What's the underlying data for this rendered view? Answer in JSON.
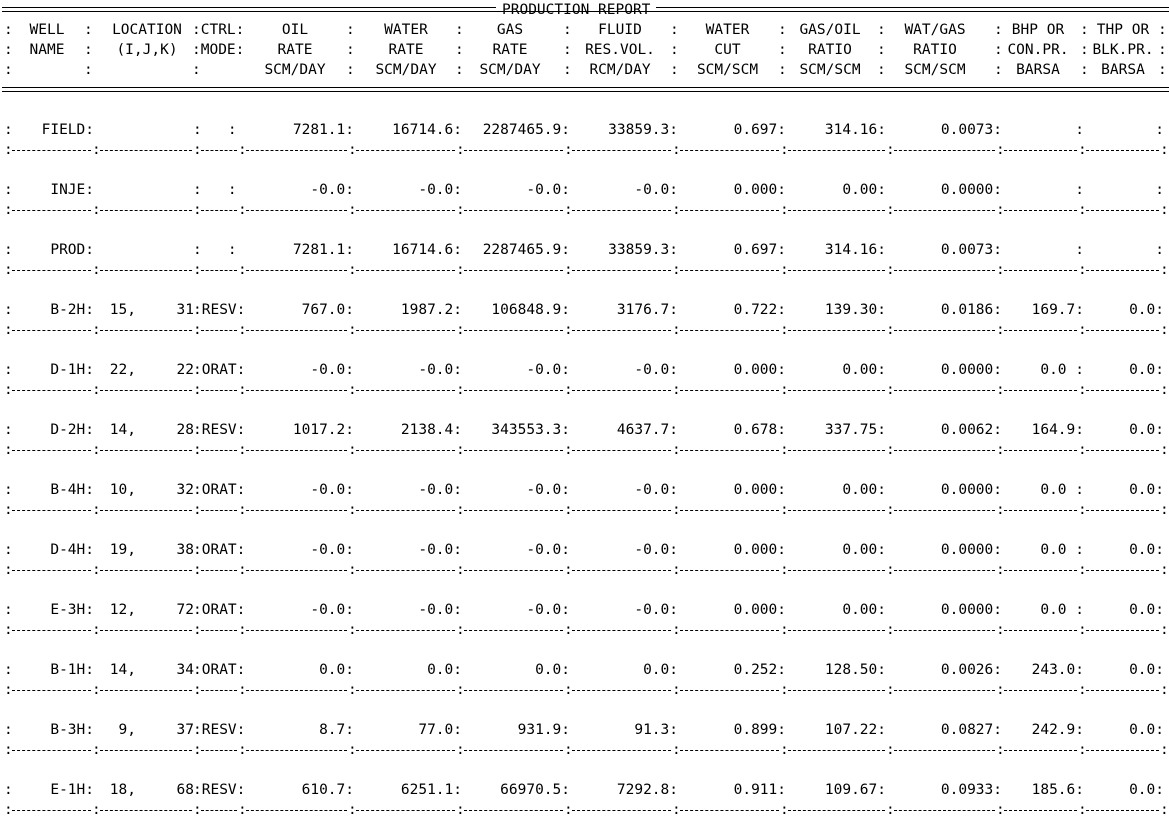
{
  "report": {
    "title": "PRODUCTION REPORT",
    "header_lines": [
      {
        "cells": [
          ":",
          "WELL",
          ":",
          "LOCATION",
          ":CTRL:",
          "OIL",
          ":",
          "WATER",
          ":",
          "GAS",
          ":",
          "FLUID",
          ":",
          "WATER",
          ":",
          "GAS/OIL",
          ":",
          "WAT/GAS",
          ":",
          "BHP OR",
          ":",
          "THP OR",
          ":"
        ]
      },
      {
        "cells": [
          ":",
          "NAME",
          ":",
          "(I,J,K)",
          ":MODE:",
          "RATE",
          ":",
          "RATE",
          ":",
          "RATE",
          ":",
          "RES.VOL.",
          ":",
          "CUT",
          ":",
          "RATIO",
          ":",
          "RATIO",
          ":",
          "CON.PR.",
          ":",
          "BLK.PR.",
          ":"
        ]
      },
      {
        "cells": [
          ":",
          "",
          ":",
          "",
          ":",
          "SCM/DAY",
          ":",
          "SCM/DAY",
          ":",
          "SCM/DAY",
          ":",
          "RCM/DAY",
          ":",
          "SCM/SCM",
          ":",
          "SCM/SCM",
          ":",
          "SCM/SCM",
          ":",
          "BARSA",
          ":",
          "BARSA",
          ":"
        ]
      }
    ],
    "rows": [
      {
        "name": "FIELD:",
        "i": "",
        "j": "",
        "mode": ":   :",
        "oil": "7281.1:",
        "water": "16714.6:",
        "gas": "2287465.9:",
        "fluid": "33859.3:",
        "wcut": "0.697:",
        "gor": "314.16:",
        "wgr": "0.0073:",
        "bhp": ":",
        "thp": ":"
      },
      {
        "name": "INJE:",
        "i": "",
        "j": "",
        "mode": ":   :",
        "oil": "-0.0:",
        "water": "-0.0:",
        "gas": "-0.0:",
        "fluid": "-0.0:",
        "wcut": "0.000:",
        "gor": "0.00:",
        "wgr": "0.0000:",
        "bhp": ":",
        "thp": ":"
      },
      {
        "name": "PROD:",
        "i": "",
        "j": "",
        "mode": ":   :",
        "oil": "7281.1:",
        "water": "16714.6:",
        "gas": "2287465.9:",
        "fluid": "33859.3:",
        "wcut": "0.697:",
        "gor": "314.16:",
        "wgr": "0.0073:",
        "bhp": ":",
        "thp": ":"
      },
      {
        "name": "B-2H:",
        "i": "15,",
        "j": "31",
        "mode": ":RESV:",
        "oil": "767.0:",
        "water": "1987.2:",
        "gas": "106848.9:",
        "fluid": "3176.7:",
        "wcut": "0.722:",
        "gor": "139.30:",
        "wgr": "0.0186:",
        "bhp": "169.7:",
        "thp": "0.0:"
      },
      {
        "name": "D-1H:",
        "i": "22,",
        "j": "22",
        "mode": ":ORAT:",
        "oil": "-0.0:",
        "water": "-0.0:",
        "gas": "-0.0:",
        "fluid": "-0.0:",
        "wcut": "0.000:",
        "gor": "0.00:",
        "wgr": "0.0000:",
        "bhp": "0.0 :",
        "thp": "0.0:"
      },
      {
        "name": "D-2H:",
        "i": "14,",
        "j": "28",
        "mode": ":RESV:",
        "oil": "1017.2:",
        "water": "2138.4:",
        "gas": "343553.3:",
        "fluid": "4637.7:",
        "wcut": "0.678:",
        "gor": "337.75:",
        "wgr": "0.0062:",
        "bhp": "164.9:",
        "thp": "0.0:"
      },
      {
        "name": "B-4H:",
        "i": "10,",
        "j": "32",
        "mode": ":ORAT:",
        "oil": "-0.0:",
        "water": "-0.0:",
        "gas": "-0.0:",
        "fluid": "-0.0:",
        "wcut": "0.000:",
        "gor": "0.00:",
        "wgr": "0.0000:",
        "bhp": "0.0 :",
        "thp": "0.0:"
      },
      {
        "name": "D-4H:",
        "i": "19,",
        "j": "38",
        "mode": ":ORAT:",
        "oil": "-0.0:",
        "water": "-0.0:",
        "gas": "-0.0:",
        "fluid": "-0.0:",
        "wcut": "0.000:",
        "gor": "0.00:",
        "wgr": "0.0000:",
        "bhp": "0.0 :",
        "thp": "0.0:"
      },
      {
        "name": "E-3H:",
        "i": "12,",
        "j": "72",
        "mode": ":ORAT:",
        "oil": "-0.0:",
        "water": "-0.0:",
        "gas": "-0.0:",
        "fluid": "-0.0:",
        "wcut": "0.000:",
        "gor": "0.00:",
        "wgr": "0.0000:",
        "bhp": "0.0 :",
        "thp": "0.0:"
      },
      {
        "name": "B-1H:",
        "i": "14,",
        "j": "34",
        "mode": ":ORAT:",
        "oil": "0.0:",
        "water": "0.0:",
        "gas": "0.0:",
        "fluid": "0.0:",
        "wcut": "0.252:",
        "gor": "128.50:",
        "wgr": "0.0026:",
        "bhp": "243.0:",
        "thp": "0.0:"
      },
      {
        "name": "B-3H:",
        "i": "9,",
        "j": "37",
        "mode": ":RESV:",
        "oil": "8.7:",
        "water": "77.0:",
        "gas": "931.9:",
        "fluid": "91.3:",
        "wcut": "0.899:",
        "gor": "107.22:",
        "wgr": "0.0827:",
        "bhp": "242.9:",
        "thp": "0.0:"
      },
      {
        "name": "E-1H:",
        "i": "18,",
        "j": "68",
        "mode": ":RESV:",
        "oil": "610.7:",
        "water": "6251.1:",
        "gas": "66970.5:",
        "fluid": "7292.8:",
        "wcut": "0.911:",
        "gor": "109.67:",
        "wgr": "0.0933:",
        "bhp": "185.6:",
        "thp": "0.0:"
      }
    ]
  }
}
